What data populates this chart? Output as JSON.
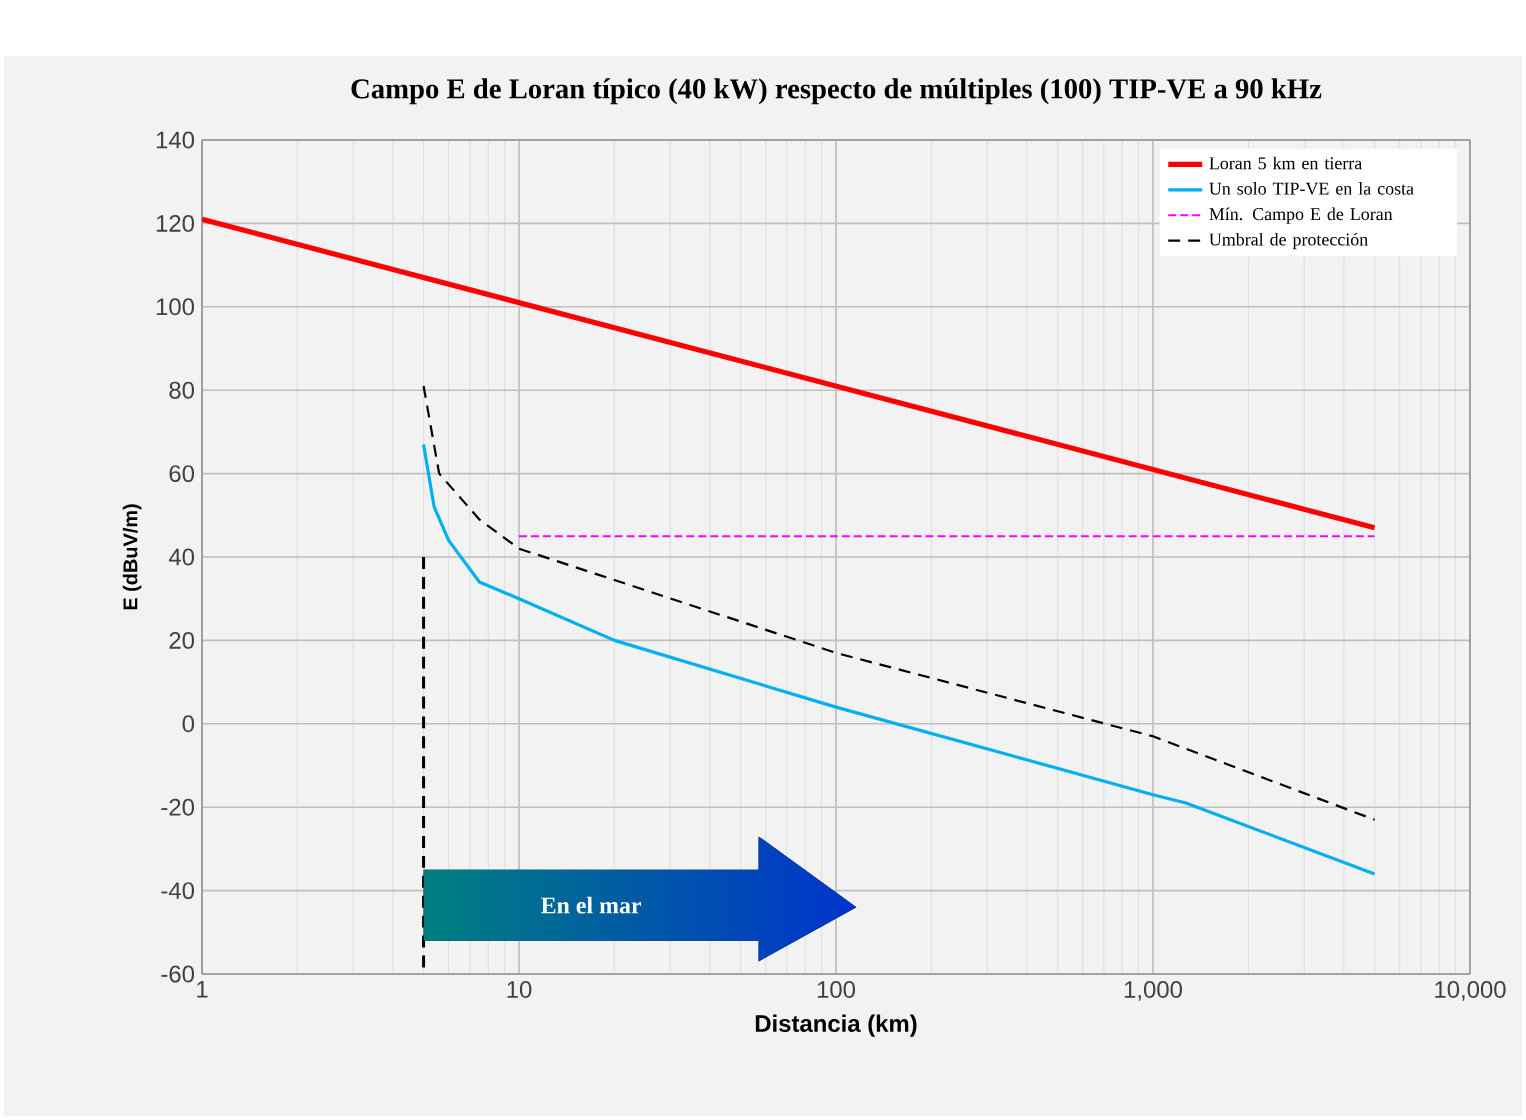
{
  "chart_data": {
    "type": "line",
    "title": "Campo E de Loran típico (40 kW) respecto de múltiples (100) TIP-VE a 90 kHz",
    "xlabel": "Distancia (km)",
    "ylabel": "E (dBuV/m)",
    "log": "x",
    "xlim": [
      1,
      10000
    ],
    "xticks": [
      1,
      10,
      100,
      {
        "value": 1000,
        "label": "1,000"
      },
      {
        "value": 10000,
        "label": "10,000"
      }
    ],
    "ylim": [
      -60,
      140
    ],
    "yticks": [
      -60,
      -40,
      -20,
      0,
      20,
      40,
      60,
      80,
      100,
      120,
      140
    ],
    "grid": true,
    "legend": "top right",
    "series": [
      {
        "name": "Loran 5 km en tierra",
        "color": "#ff0000",
        "line_style": "solid",
        "x": [
          1,
          5000
        ],
        "values": [
          121,
          47
        ]
      },
      {
        "name": "Un solo TIP-VE en la costa",
        "color": "#00b0f0",
        "line_style": "solid",
        "x": [
          5,
          5.4,
          6,
          7.5,
          10,
          20,
          100,
          1000,
          1270,
          5000
        ],
        "values": [
          67,
          52,
          44,
          34,
          30,
          20,
          4,
          -17,
          -19,
          -36
        ]
      },
      {
        "name": "Mín. Campo E de Loran",
        "color": "#ff00ff",
        "line_style": "dashed",
        "x": [
          10,
          5000
        ],
        "values": [
          45,
          45
        ]
      },
      {
        "name": "Umbral de protección",
        "color": "#000000",
        "line_style": "dashed",
        "x": [
          5,
          5.6,
          7.5,
          10,
          100,
          1000,
          5000
        ],
        "values": [
          81,
          60,
          49,
          42,
          17,
          -3,
          -23
        ]
      },
      {
        "color": "#000000",
        "line_style": "dashed",
        "x": [
          5,
          5
        ],
        "values": [
          40,
          -60
        ]
      }
    ],
    "annotations": [
      "En el mar"
    ]
  }
}
